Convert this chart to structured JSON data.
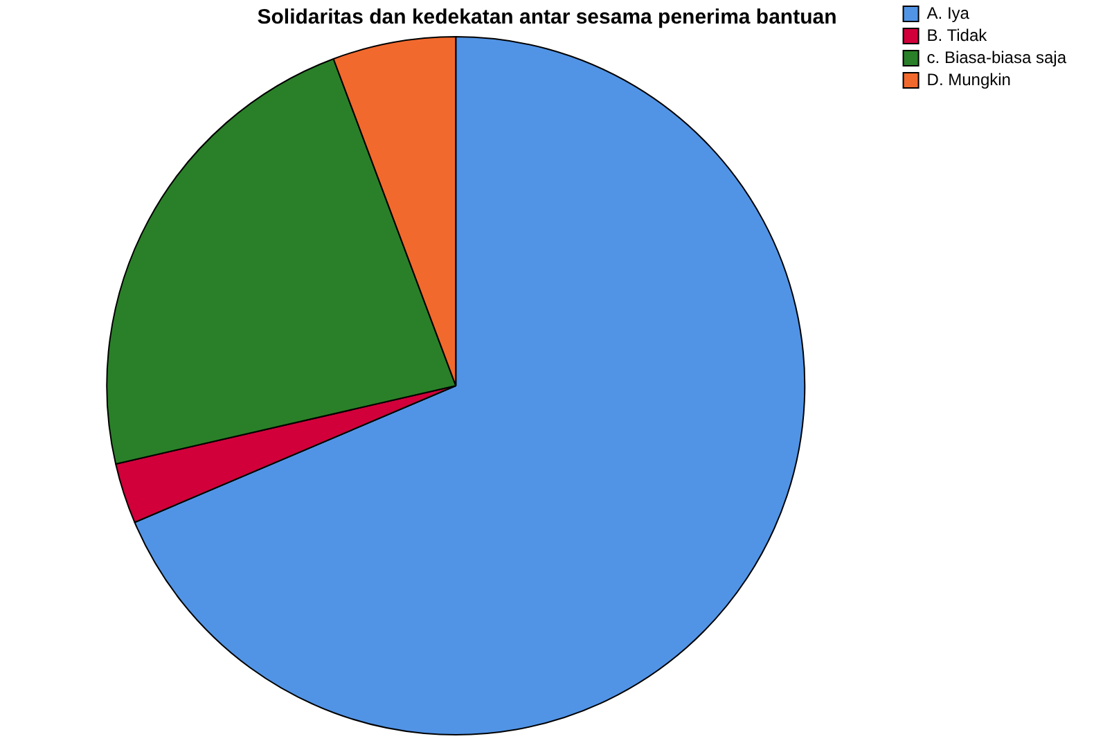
{
  "chart_data": {
    "type": "pie",
    "title": "Solidaritas dan kedekatan antar sesama penerima bantuan",
    "categories": [
      "A. Iya",
      "B. Tidak",
      "c. Biasa-biasa saja",
      "D. Mungkin"
    ],
    "values": [
      68.6,
      2.8,
      22.9,
      5.7
    ],
    "colors": [
      "#5194e6",
      "#d2003a",
      "#2a8028",
      "#f2692d"
    ],
    "legend": "top right"
  }
}
